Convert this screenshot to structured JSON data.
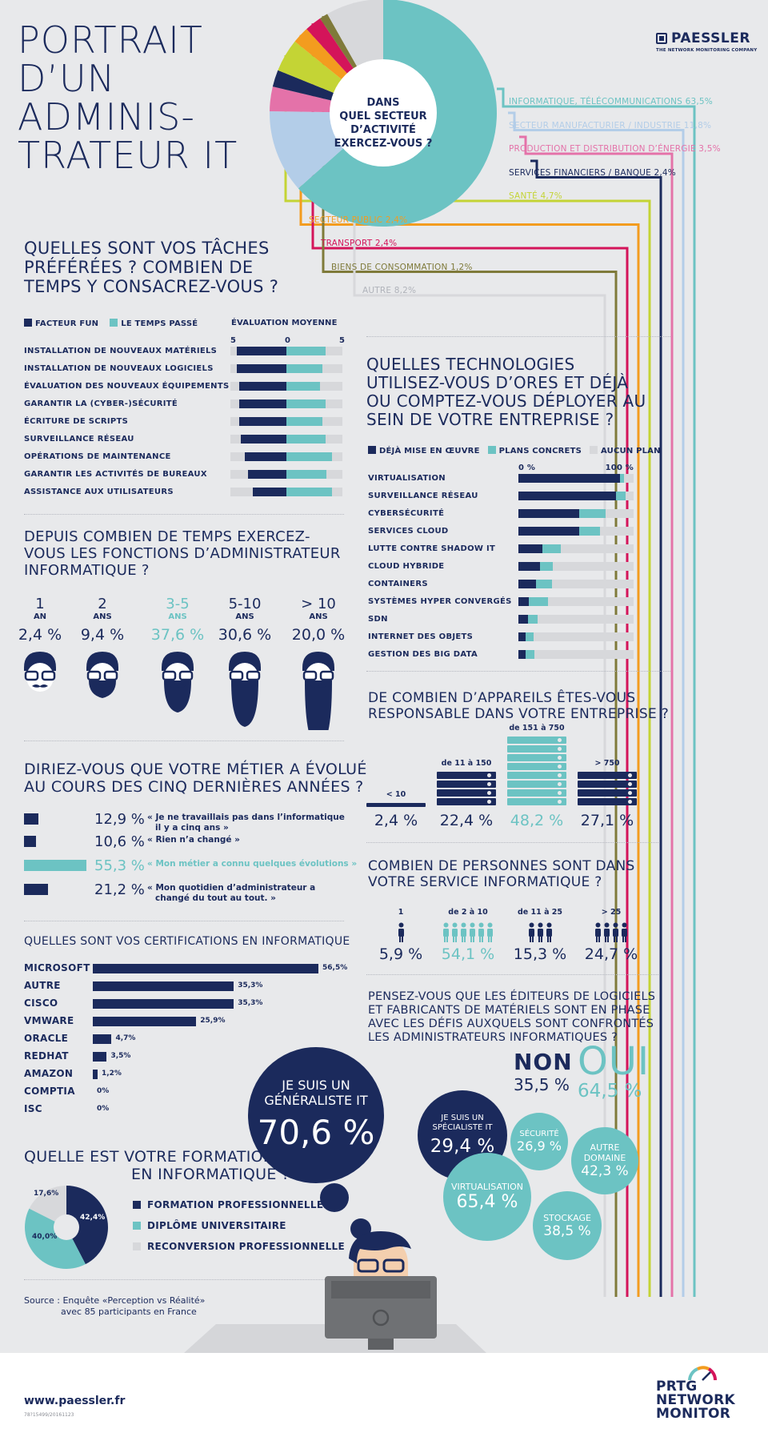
{
  "header": {
    "title_lines": [
      "PORTRAIT",
      "D’UN",
      "ADMINIS-",
      "TRATEUR IT"
    ],
    "brand": "PAESSLER",
    "brand_sub": "THE NETWORK MONITORING COMPANY"
  },
  "sector": {
    "question_lines": [
      "DANS",
      "QUEL SECTEUR",
      "D’ACTIVITÉ",
      "EXERCEZ-VOUS ?"
    ],
    "chart_data": {
      "type": "pie",
      "slices": [
        {
          "label": "INFORMATIQUE, TÉLÉCOMMUNICATIONS 63,5%",
          "value": 63.5,
          "color": "#6cc3c3"
        },
        {
          "label": "SECTEUR MANUFACTURIER / INDUSTRIE 11,8%",
          "value": 11.8,
          "color": "#b3cde8"
        },
        {
          "label": "PRODUCTION ET DISTRIBUTION D’ÉNERGIE 3,5%",
          "value": 3.5,
          "color": "#e472a9"
        },
        {
          "label": "SERVICES FINANCIERS / BANQUE 2,4%",
          "value": 2.4,
          "color": "#1b2a5c"
        },
        {
          "label": "SANTÉ 4,7%",
          "value": 4.7,
          "color": "#c4d435"
        },
        {
          "label": "SECTEUR PUBLIC 2,4%",
          "value": 2.4,
          "color": "#f39c1f"
        },
        {
          "label": "TRANSPORT 2,4%",
          "value": 2.4,
          "color": "#d4145a"
        },
        {
          "label": "BIENS DE CONSOMMATION 1,2%",
          "value": 1.2,
          "color": "#7f7a3a"
        },
        {
          "label": "AUTRE 8,2%",
          "value": 8.2,
          "color": "#d7d8db"
        }
      ]
    }
  },
  "tasks": {
    "title_lines": [
      "QUELLES SONT VOS TÂCHES",
      "PRÉFÉRÉES ? COMBIEN DE",
      "TEMPS Y CONSACREZ-VOUS ?"
    ],
    "legend_fun": "FACTEUR FUN",
    "legend_time": "LE TEMPS PASSÉ",
    "eval_label": "ÉVALUATION MOYENNE",
    "scale": [
      "5",
      "0",
      "5"
    ],
    "chart_data": {
      "type": "bar",
      "categories": [
        "INSTALLATION DE NOUVEAUX MATÉRIELS",
        "INSTALLATION DE NOUVEAUX LOGICIELS",
        "ÉVALUATION DES NOUVEAUX ÉQUIPEMENTS",
        "GARANTIR LA (CYBER-)SÉCURITÉ",
        "ÉCRITURE DE SCRIPTS",
        "SURVEILLANCE RÉSEAU",
        "OPÉRATIONS DE MAINTENANCE",
        "GARANTIR LES ACTIVITÉS DE BUREAUX",
        "ASSISTANCE AUX UTILISATEURS"
      ],
      "series": [
        {
          "name": "FACTEUR FUN",
          "values": [
            4.4,
            4.4,
            4.2,
            4.2,
            4.2,
            4.1,
            3.7,
            3.4,
            3.0
          ]
        },
        {
          "name": "LE TEMPS PASSÉ",
          "values": [
            3.5,
            3.2,
            3.0,
            3.5,
            3.2,
            3.5,
            4.1,
            3.6,
            4.1
          ]
        }
      ],
      "xlim": [
        -5,
        5
      ]
    }
  },
  "experience": {
    "title_lines": [
      "DEPUIS COMBIEN DE TEMPS EXERCEZ-",
      "VOUS LES FONCTIONS D’ADMINISTRATEUR",
      "INFORMATIQUE ?"
    ],
    "items": [
      {
        "num": "1",
        "unit": "AN",
        "pct": "2,4 %"
      },
      {
        "num": "2",
        "unit": "ANS",
        "pct": "9,4 %"
      },
      {
        "num": "3-5",
        "unit": "ANS",
        "pct": "37,6 %"
      },
      {
        "num": "5-10",
        "unit": "ANS",
        "pct": "30,6 %"
      },
      {
        "num": "> 10",
        "unit": "ANS",
        "pct": "20,0 %"
      }
    ]
  },
  "evolution": {
    "title_lines": [
      "DIRIEZ-VOUS QUE VOTRE MÉTIER A ÉVOLUÉ",
      "AU COURS DES CINQ DERNIÈRES ANNÉES ?"
    ],
    "chart_data": {
      "type": "bar",
      "categories": [
        "« Je ne travaillais pas dans l’informatique il y a cinq ans »",
        "« Rien n’a changé »",
        "« Mon métier a connu quelques évolutions »",
        "« Mon quotidien d’administrateur a changé du tout au tout. »"
      ],
      "values": [
        12.9,
        10.6,
        55.3,
        21.2
      ],
      "pct_labels": [
        "12,9 %",
        "10,6 %",
        "55,3 %",
        "21,2 %"
      ],
      "quote_lines": [
        [
          "« Je ne travaillais pas dans l’informatique",
          "il y a cinq ans »"
        ],
        [
          "« Rien n’a changé »"
        ],
        [
          "« Mon métier a connu quelques évolutions »"
        ],
        [
          "« Mon quotidien d’administrateur a",
          "changé du tout au tout. »"
        ]
      ]
    }
  },
  "certifications": {
    "title": "QUELLES SONT VOS CERTIFICATIONS EN INFORMATIQUE",
    "chart_data": {
      "type": "bar",
      "categories": [
        "MICROSOFT",
        "AUTRE",
        "CISCO",
        "VMWARE",
        "ORACLE",
        "REDHAT",
        "AMAZON",
        "COMPTIA",
        "ISC"
      ],
      "values": [
        56.5,
        35.3,
        35.3,
        25.9,
        4.7,
        3.5,
        1.2,
        0,
        0
      ],
      "labels": [
        "56,5%",
        "35,3%",
        "35,3%",
        "25,9%",
        "4,7%",
        "3,5%",
        "1,2%",
        "0%",
        "0%"
      ]
    }
  },
  "formation": {
    "title_lines": [
      "QUELLE EST VOTRE FORMATION",
      "EN INFORMATIQUE ?"
    ],
    "chart_data": {
      "type": "pie",
      "slices": [
        {
          "label": "FORMATION PROFESSIONNELLE",
          "value": 42.4,
          "text": "42,4%",
          "color": "#1b2a5c"
        },
        {
          "label": "DIPLÔME UNIVERSITAIRE",
          "value": 40.0,
          "text": "40,0%",
          "color": "#6cc3c3"
        },
        {
          "label": "RECONVERSION PROFESSIONNELLE",
          "value": 17.6,
          "text": "17,6%",
          "color": "#d7d8db"
        }
      ]
    }
  },
  "source_lines": [
    "Source : Enquête «Perception vs Réalité»",
    "avec 85 participants en France"
  ],
  "technologies": {
    "title_lines": [
      "QUELLES TECHNOLOGIES",
      "UTILISEZ-VOUS D’ORES ET DÉJÀ",
      "OU COMPTEZ-VOUS DÉPLOYER AU",
      "SEIN DE VOTRE ENTREPRISE ?"
    ],
    "legend": [
      "DÉJÀ MISE EN ŒUVRE",
      "PLANS CONCRETS",
      "AUCUN PLAN"
    ],
    "axis": [
      "0 %",
      "100 %"
    ],
    "chart_data": {
      "type": "bar",
      "categories": [
        "VIRTUALISATION",
        "SURVEILLANCE RÉSEAU",
        "CYBERSÉCURITÉ",
        "SERVICES CLOUD",
        "LUTTE CONTRE SHADOW IT",
        "CLOUD HYBRIDE",
        "CONTAINERS",
        "SYSTÈMES HYPER CONVERGÉS",
        "SDN",
        "INTERNET DES OBJETS",
        "GESTION DES BIG DATA"
      ],
      "series": [
        {
          "name": "DÉJÀ MISE EN ŒUVRE",
          "values": [
            88,
            85,
            53,
            53,
            21,
            19,
            15,
            9,
            8,
            6,
            6
          ]
        },
        {
          "name": "PLANS CONCRETS",
          "values": [
            4,
            8,
            23,
            18,
            16,
            11,
            14,
            17,
            9,
            7,
            8
          ]
        },
        {
          "name": "AUCUN PLAN",
          "values": [
            8,
            7,
            24,
            29,
            63,
            70,
            71,
            74,
            83,
            87,
            86
          ]
        }
      ]
    }
  },
  "devices": {
    "title_lines": [
      "DE COMBIEN D’APPAREILS ÊTES-VOUS",
      "RESPONSABLE DANS VOTRE ENTREPRISE ?"
    ],
    "items": [
      {
        "label": "< 10",
        "pct": "2,4 %"
      },
      {
        "label": "de 11 à 150",
        "pct": "22,4 %"
      },
      {
        "label": "de 151 à 750",
        "pct": "48,2 %"
      },
      {
        "label": "> 750",
        "pct": "27,1 %"
      }
    ]
  },
  "people": {
    "title_lines": [
      "COMBIEN DE PERSONNES SONT DANS",
      "VOTRE SERVICE INFORMATIQUE ?"
    ],
    "items": [
      {
        "label": "1",
        "pct": "5,9 %"
      },
      {
        "label": "de 2 à 10",
        "pct": "54,1 %"
      },
      {
        "label": "de 11 à 25",
        "pct": "15,3 %"
      },
      {
        "label": "> 25",
        "pct": "24,7 %"
      }
    ]
  },
  "vendors": {
    "title_lines": [
      "PENSEZ-VOUS QUE LES ÉDITEURS DE LOGICIELS",
      "ET FABRICANTS DE MATÉRIELS SONT EN PHASE",
      "AVEC LES DÉFIS AUXQUELS SONT CONFRONTÉS",
      "LES ADMINISTRATEURS INFORMATIQUES ?"
    ],
    "non_label": "NON",
    "non_pct": "35,5 %",
    "oui_label": "OUI",
    "oui_pct": "64,5 %"
  },
  "roles": {
    "generalist_lines": [
      "JE SUIS UN",
      "GÉNÉRALISTE IT"
    ],
    "generalist_pct": "70,6 %",
    "specialist_lines": [
      "JE SUIS UN",
      "SPÉCIALISTE IT"
    ],
    "specialist_pct": "29,4 %",
    "security_label": "SÉCURITÉ",
    "security_pct": "26,9 %",
    "other_lines": [
      "AUTRE",
      "DOMAINE"
    ],
    "other_pct": "42,3 %",
    "virtualisation_label": "VIRTUALISATION",
    "virtualisation_pct": "65,4 %",
    "storage_label": "STOCKAGE",
    "storage_pct": "38,5 %"
  },
  "footer": {
    "url": "www.paessler.fr",
    "code": "78?15499/20161123",
    "product_lines": [
      "PRTG",
      "NETWORK",
      "MONITOR"
    ]
  },
  "colors": {
    "navy": "#1b2a5c",
    "teal": "#6cc3c3",
    "grey": "#d7d8db",
    "bg": "#e8e9eb"
  }
}
